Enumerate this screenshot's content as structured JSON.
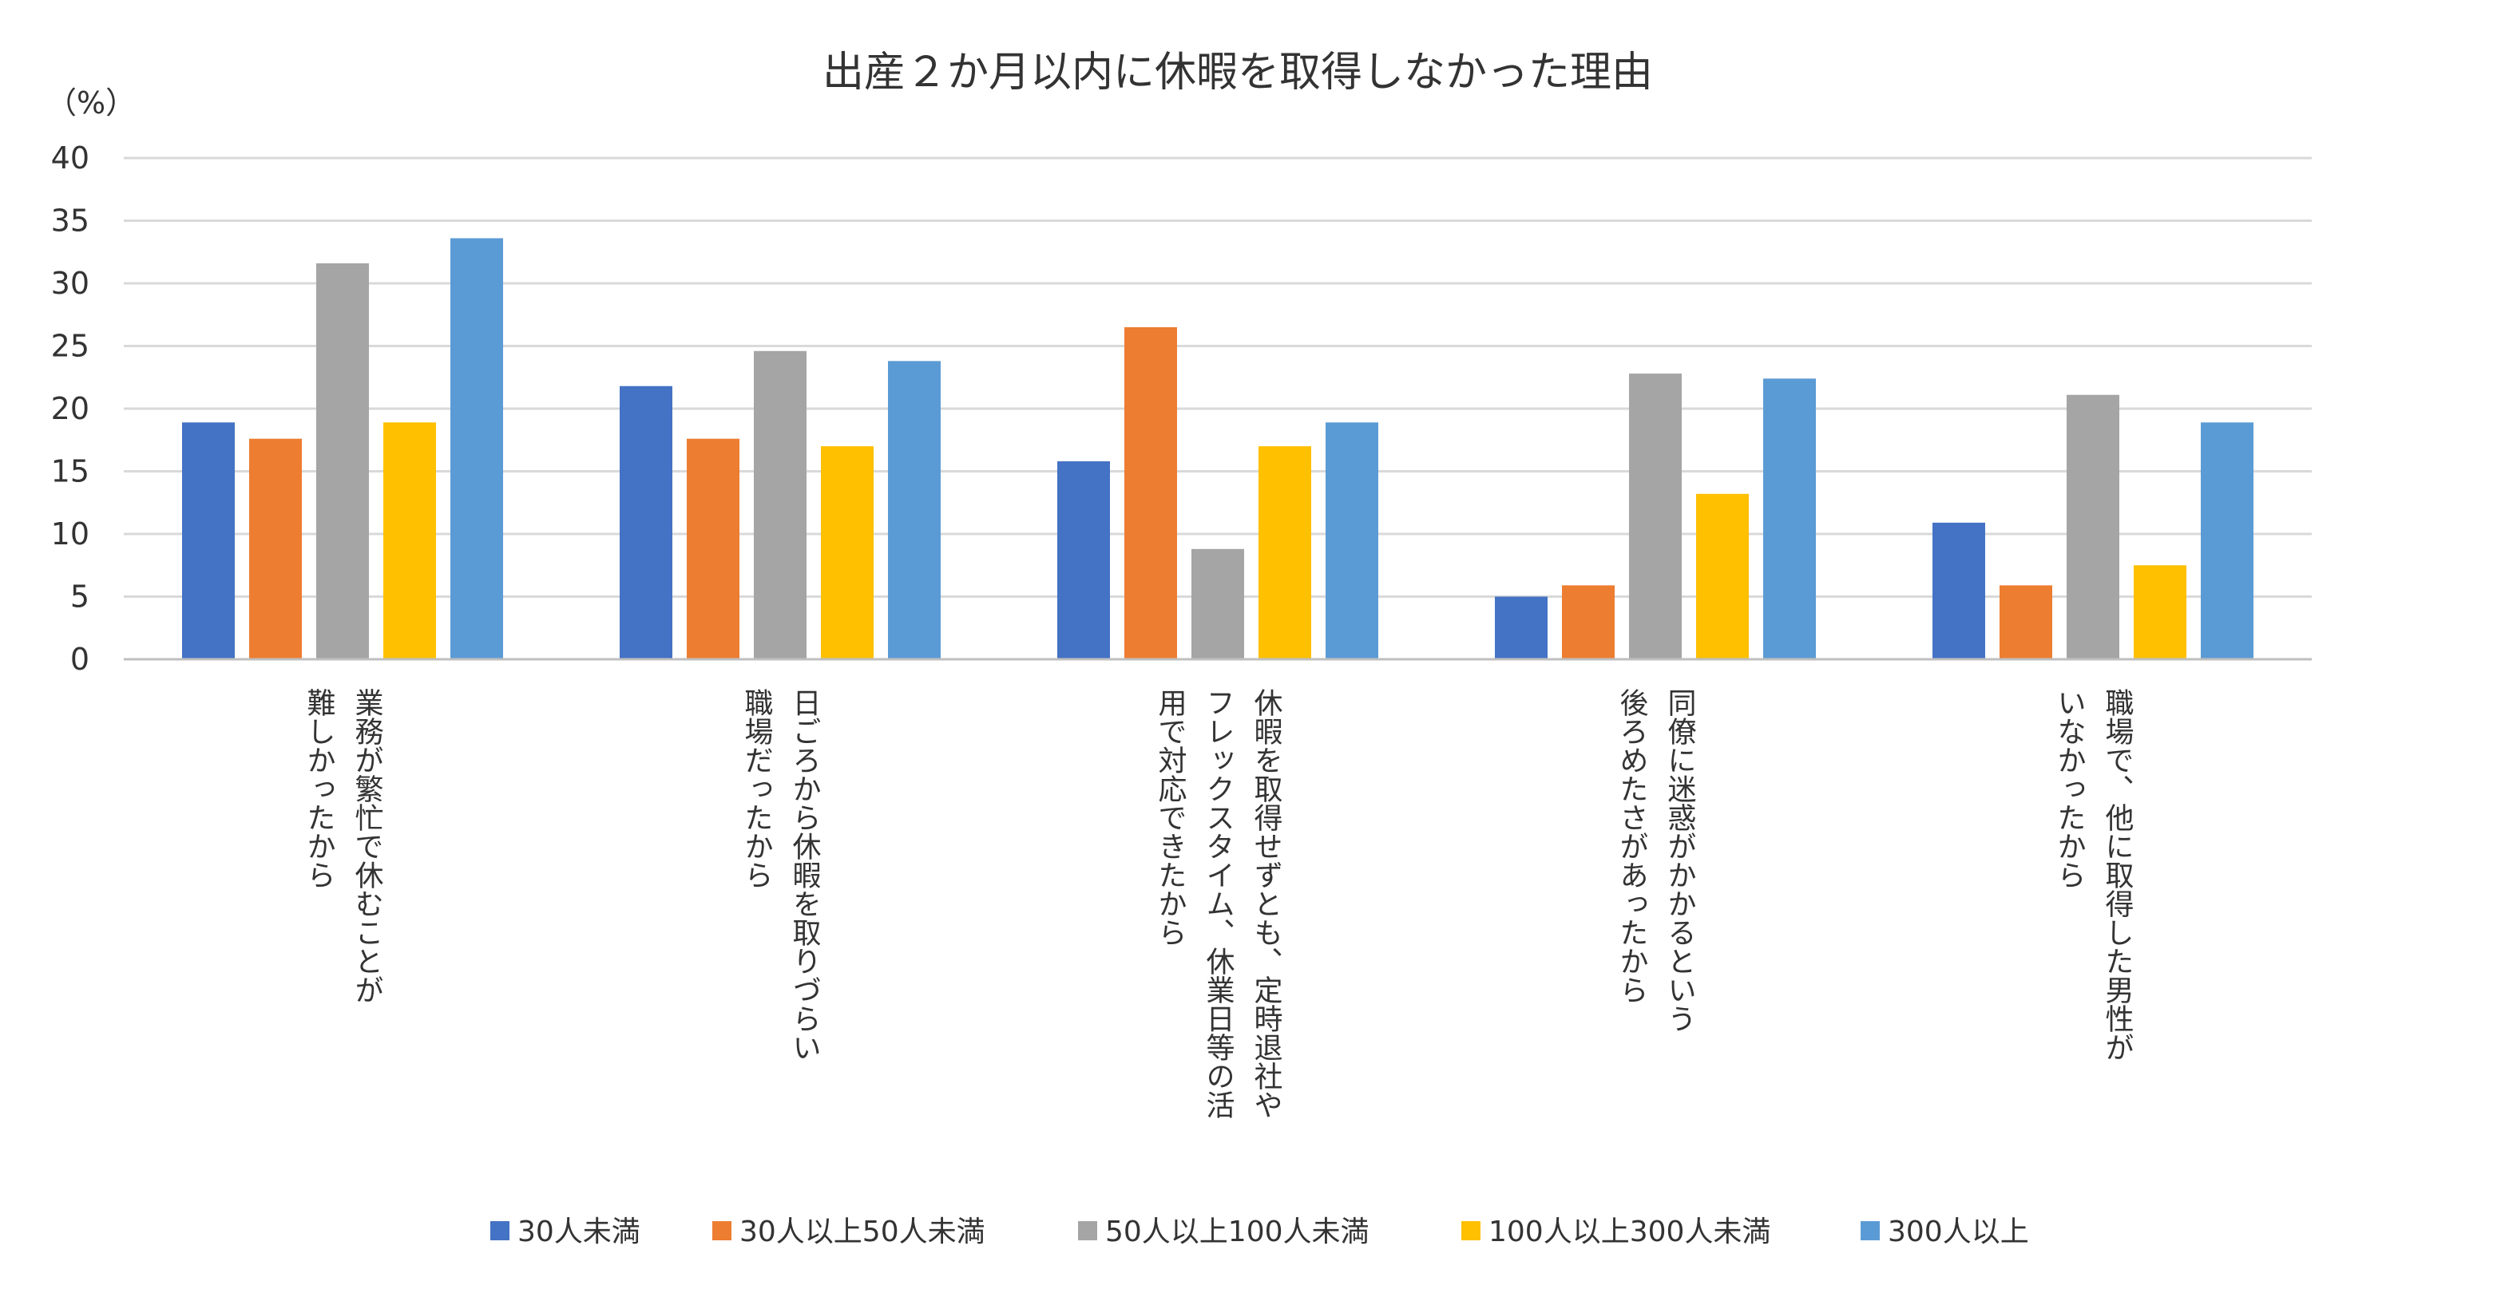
{
  "chart_data": {
    "type": "bar",
    "title": "出産２か月以内に休暇を取得しなかった理由",
    "ylabel": "（%）",
    "xlabel": "",
    "ylim": [
      0,
      40
    ],
    "yticks": [
      0,
      5,
      10,
      15,
      20,
      25,
      30,
      35,
      40
    ],
    "grid": true,
    "legend_position": "bottom",
    "categories": [
      "業務が繁忙で休むことが難しかったから",
      "日ごろから休暇を取りづらい職場だったから",
      "休暇を取得せずとも、定時退社やフレックスタイム、休業日等の活用で対応できたから",
      "同僚に迷惑がかかるという後ろめたさがあったから",
      "職場で、他に取得した男性がいなかったから"
    ],
    "category_lines": [
      [
        "業務が繁忙で休むことが",
        "難しかったから"
      ],
      [
        "日ごろから休暇を取りづらい",
        "職場だったから"
      ],
      [
        "休暇を取得せずとも、定時退社や",
        "フレックスタイム、休業日等の活",
        "用で対応できたから"
      ],
      [
        "同僚に迷惑がかかるという",
        "後ろめたさがあったから"
      ],
      [
        "職場で、他に取得した男性が",
        "いなかったから"
      ]
    ],
    "series": [
      {
        "name": "30人未満",
        "color": "#4472c4",
        "values": [
          18.9,
          21.8,
          15.8,
          5.0,
          10.9
        ]
      },
      {
        "name": "30人以上50人未満",
        "color": "#ed7d31",
        "values": [
          17.6,
          17.6,
          26.5,
          5.9,
          5.9
        ]
      },
      {
        "name": "50人以上100人未満",
        "color": "#a5a5a5",
        "values": [
          31.6,
          24.6,
          8.8,
          22.8,
          21.1
        ]
      },
      {
        "name": "100人以上300人未満",
        "color": "#ffc000",
        "values": [
          18.9,
          17.0,
          17.0,
          13.2,
          7.5
        ]
      },
      {
        "name": "300人以上",
        "color": "#5b9bd5",
        "values": [
          33.6,
          23.8,
          18.9,
          22.4,
          18.9
        ]
      }
    ]
  }
}
